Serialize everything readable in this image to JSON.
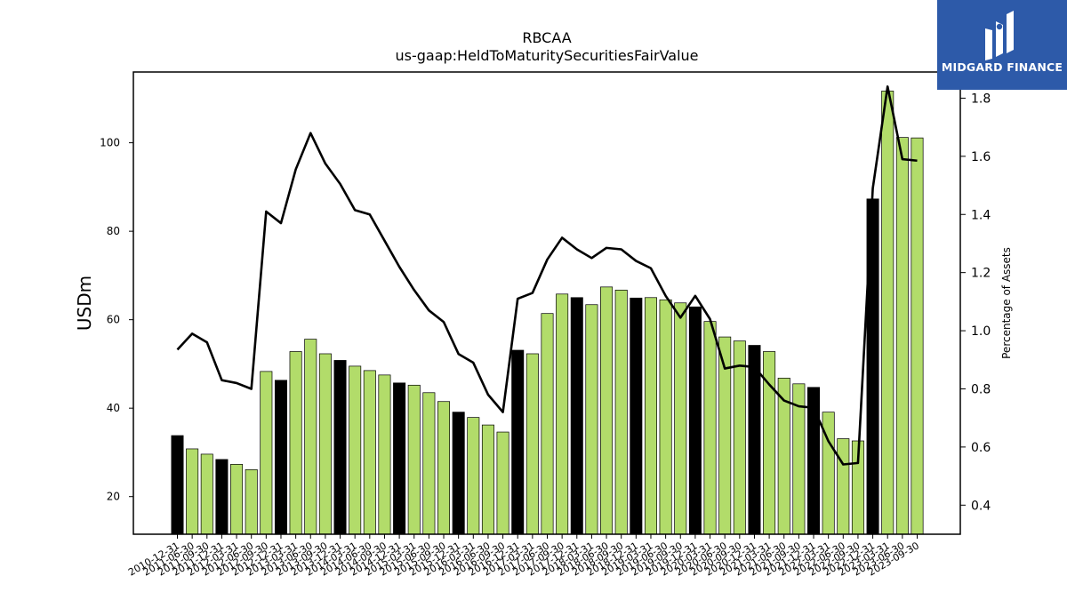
{
  "brand": {
    "name": "MIDGARD FINANCE",
    "logo_icon": "midgard-m-icon",
    "background_color": "#2d5aa9"
  },
  "chart_data": {
    "type": "bar",
    "title": "RBCAA",
    "subtitle": "us-gaap:HeldToMaturitySecuritiesFairValue",
    "ylabel": "USDm",
    "y2label": "Percentage of Assets",
    "ylim": [
      11.5,
      116
    ],
    "y2lim": [
      0.3,
      1.89
    ],
    "yticks": [
      20,
      40,
      60,
      80,
      100
    ],
    "y2ticks": [
      0.4,
      0.6,
      0.8,
      1.0,
      1.2,
      1.4,
      1.6,
      1.8
    ],
    "bar_color_default": "#b2dc6a",
    "bar_color_year_end": "#000000",
    "line_color": "#000000",
    "categories": [
      "2010-12-31",
      "2011-06-30",
      "2011-09-30",
      "2011-12-31",
      "2012-03-31",
      "2012-06-30",
      "2012-09-30",
      "2012-12-31",
      "2013-03-31",
      "2013-06-30",
      "2013-09-30",
      "2013-12-31",
      "2014-03-31",
      "2014-06-30",
      "2014-09-30",
      "2014-12-31",
      "2015-03-31",
      "2015-06-30",
      "2015-09-30",
      "2015-12-31",
      "2016-03-31",
      "2016-06-30",
      "2016-09-30",
      "2016-12-31",
      "2017-03-31",
      "2017-06-30",
      "2017-09-30",
      "2017-12-31",
      "2018-03-31",
      "2018-06-30",
      "2018-09-30",
      "2018-12-31",
      "2019-03-31",
      "2019-06-30",
      "2019-09-30",
      "2019-12-31",
      "2020-03-31",
      "2020-06-30",
      "2020-09-30",
      "2020-12-31",
      "2021-03-31",
      "2021-06-30",
      "2021-09-30",
      "2021-12-31",
      "2022-03-31",
      "2022-06-30",
      "2022-09-30",
      "2022-12-31",
      "2023-03-31",
      "2023-06-30",
      "2023-09-30"
    ],
    "xtick_labels": [
      "2010-12-31",
      "2011-06-30",
      "2011-09-30",
      "2011-12-31",
      "2012-03-31",
      "2012-06-30",
      "2012-09-30",
      "2012-12-31",
      "2013-03-31",
      "2013-06-30",
      "2013-09-30",
      "2013-12-31",
      "2014-03-31",
      "2014-06-30",
      "2014-09-30",
      "2014-12-31",
      "2015-03-31",
      "2015-06-30",
      "2015-09-30",
      "2015-12-31",
      "2016-03-31",
      "2016-06-30",
      "2016-09-30",
      "2016-12-31",
      "2017-03-31",
      "2017-06-30",
      "2017-09-30",
      "2017-12-31",
      "2018-03-31",
      "2018-06-30",
      "2018-09-30",
      "2018-12-31",
      "2019-03-31",
      "2019-06-30",
      "2019-09-30",
      "2019-12-31",
      "2020-03-31",
      "2020-06-30",
      "2020-09-30",
      "2020-12-31",
      "2021-03-31",
      "2021-06-30",
      "2021-09-30",
      "2021-12-31",
      "2022-03-31",
      "2022-06-30",
      "2022-09-30",
      "2022-12-31",
      "2023-03-31",
      "2023-06-30",
      "2023-09-30"
    ],
    "year_end_flags": [
      1,
      0,
      0,
      1,
      0,
      0,
      0,
      1,
      0,
      0,
      0,
      1,
      0,
      0,
      0,
      1,
      0,
      0,
      0,
      1,
      0,
      0,
      0,
      1,
      0,
      0,
      0,
      1,
      0,
      0,
      0,
      1,
      0,
      0,
      0,
      1,
      0,
      0,
      0,
      1,
      0,
      0,
      0,
      1,
      0,
      0,
      0,
      1,
      0,
      0,
      0
    ],
    "series": [
      {
        "axis": "left",
        "kind": "bar",
        "values": [
          33.8,
          30.8,
          29.6,
          28.4,
          27.3,
          26.1,
          48.3,
          46.3,
          52.8,
          55.6,
          52.3,
          50.8,
          49.5,
          48.5,
          47.5,
          45.7,
          45.2,
          43.5,
          41.5,
          39.1,
          37.9,
          36.2,
          34.6,
          53.1,
          52.3,
          61.4,
          65.8,
          65.0,
          63.4,
          67.4,
          66.7,
          64.9,
          65.0,
          64.5,
          63.8,
          62.9,
          59.6,
          56.1,
          55.2,
          54.2,
          52.8,
          46.8,
          45.5,
          44.7,
          39.1,
          33.1,
          32.6,
          87.3,
          111.7,
          101.2,
          101.1
        ]
      },
      {
        "axis": "right",
        "kind": "line",
        "values": [
          0.935,
          0.99,
          0.96,
          0.83,
          0.82,
          0.8,
          1.41,
          1.37,
          1.555,
          1.68,
          1.575,
          1.505,
          1.415,
          1.4,
          1.31,
          1.22,
          1.14,
          1.07,
          1.03,
          0.92,
          0.89,
          0.78,
          0.72,
          1.11,
          1.13,
          1.245,
          1.32,
          1.28,
          1.25,
          1.285,
          1.28,
          1.24,
          1.215,
          1.12,
          1.045,
          1.12,
          1.04,
          0.87,
          0.88,
          0.875,
          0.815,
          0.76,
          0.74,
          0.735,
          0.62,
          0.54,
          0.545,
          1.49,
          1.84,
          1.59,
          1.585
        ]
      }
    ]
  }
}
